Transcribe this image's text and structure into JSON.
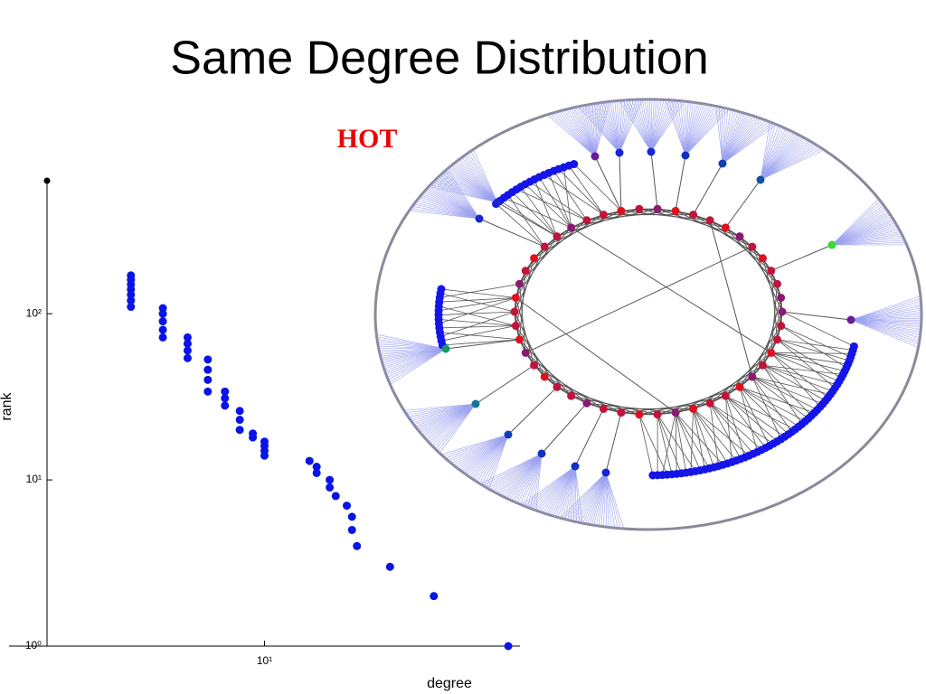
{
  "chart_data": {
    "type": "scatter",
    "title": "Same Degree Distribution",
    "annotation": "HOT",
    "xlabel": "degree",
    "ylabel": "rank",
    "xscale": "log",
    "yscale": "log",
    "color": "#0a14e6",
    "x": [
      3,
      3,
      3,
      3,
      3,
      3,
      3,
      4,
      4,
      4,
      4,
      4,
      5,
      5,
      5,
      5,
      6,
      6,
      6,
      6,
      7,
      7,
      7,
      8,
      8,
      8,
      9,
      9,
      10,
      10,
      10,
      10,
      15,
      16,
      16,
      18,
      18,
      19,
      21,
      22,
      22,
      23,
      31,
      46,
      90
    ],
    "y": [
      110,
      120,
      130,
      140,
      150,
      160,
      170,
      72,
      80,
      90,
      100,
      108,
      54,
      60,
      66,
      72,
      34,
      40,
      46,
      53,
      28,
      31,
      34,
      20,
      23,
      26,
      18,
      19,
      14,
      15,
      16,
      17,
      13,
      12,
      11,
      10,
      9,
      8,
      7,
      6,
      5,
      4,
      3,
      2,
      1
    ],
    "xlim": [
      1,
      100
    ],
    "ylim": [
      1,
      631
    ],
    "xticks": [
      {
        "value": 10,
        "label": "10¹"
      }
    ],
    "yticks": [
      {
        "value": 1,
        "label": "10⁰"
      },
      {
        "value": 10,
        "label": "10¹"
      },
      {
        "value": 100,
        "label": "10²"
      }
    ]
  }
}
